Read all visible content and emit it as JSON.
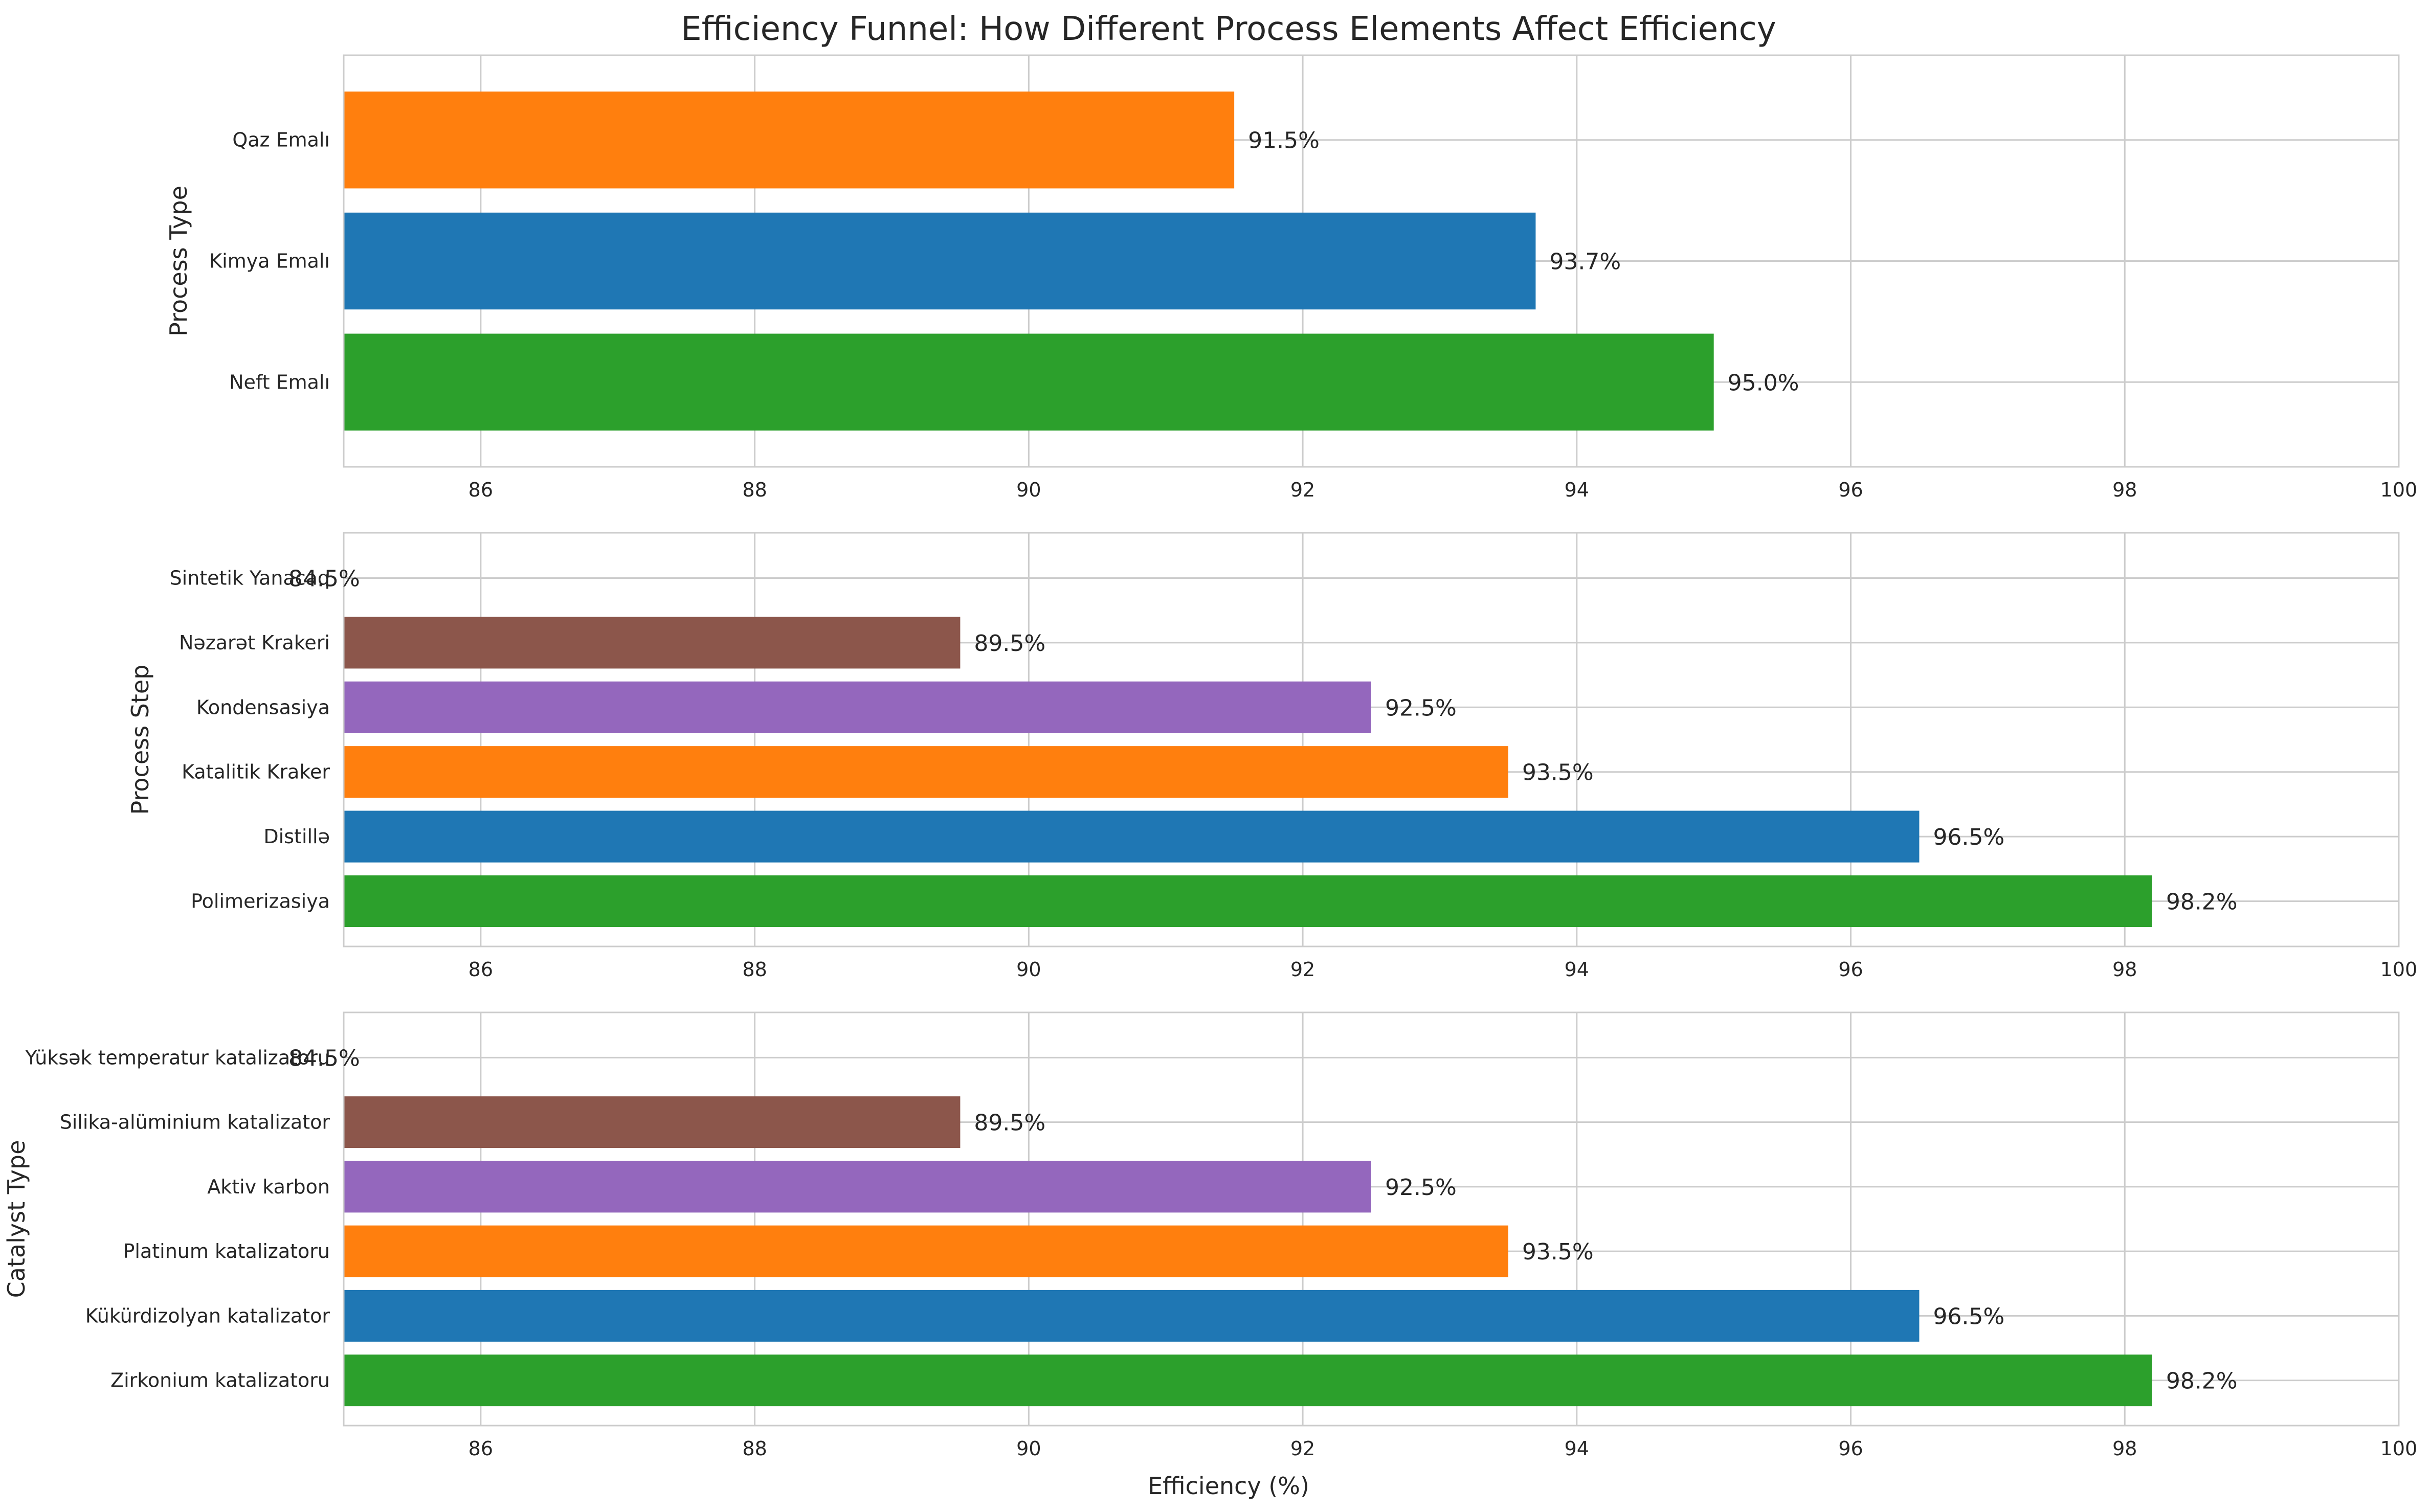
{
  "figure": {
    "title": "Efficiency Funnel: How Different Process Elements Affect Efficiency",
    "xlabel": "Efficiency (%)"
  },
  "chart_data": [
    {
      "type": "bar",
      "orientation": "horizontal",
      "ylabel": "Process Type",
      "categories": [
        "Qaz Emalı",
        "Kimya Emalı",
        "Neft Emalı"
      ],
      "values": [
        91.5,
        93.7,
        95.0
      ],
      "value_labels": [
        "91.5%",
        "93.7%",
        "95.0%"
      ],
      "colors": [
        "#ff7f0e",
        "#1f77b4",
        "#2ca02c"
      ],
      "xlim": [
        85,
        100
      ],
      "xticks": [
        "86",
        "88",
        "90",
        "92",
        "94",
        "96",
        "98",
        "100"
      ],
      "grid": true
    },
    {
      "type": "bar",
      "orientation": "horizontal",
      "ylabel": "Process Step",
      "categories": [
        "Sintetik Yanacaq",
        "Nəzarət Krakeri",
        "Kondensasiya",
        "Katalitik Kraker",
        "Distillə",
        "Polimerizasiya"
      ],
      "values": [
        84.5,
        89.5,
        92.5,
        93.5,
        96.5,
        98.2
      ],
      "value_labels": [
        "84.5%",
        "89.5%",
        "92.5%",
        "93.5%",
        "96.5%",
        "98.2%"
      ],
      "colors": [
        "#e377c2",
        "#8c564b",
        "#9467bd",
        "#ff7f0e",
        "#1f77b4",
        "#2ca02c"
      ],
      "xlim": [
        85,
        100
      ],
      "xticks": [
        "86",
        "88",
        "90",
        "92",
        "94",
        "96",
        "98",
        "100"
      ],
      "grid": true
    },
    {
      "type": "bar",
      "orientation": "horizontal",
      "ylabel": "Catalyst Type",
      "categories": [
        "Yüksək temperatur katalizatoru",
        "Silika-alüminium katalizator",
        "Aktiv karbon",
        "Platinum katalizatoru",
        "Kükürdizolyan katalizator",
        "Zirkonium katalizatoru"
      ],
      "values": [
        84.5,
        89.5,
        92.5,
        93.5,
        96.5,
        98.2
      ],
      "value_labels": [
        "84.5%",
        "89.5%",
        "92.5%",
        "93.5%",
        "96.5%",
        "98.2%"
      ],
      "colors": [
        "#e377c2",
        "#8c564b",
        "#9467bd",
        "#ff7f0e",
        "#1f77b4",
        "#2ca02c"
      ],
      "xlim": [
        85,
        100
      ],
      "xticks": [
        "86",
        "88",
        "90",
        "92",
        "94",
        "96",
        "98",
        "100"
      ],
      "grid": true
    }
  ]
}
